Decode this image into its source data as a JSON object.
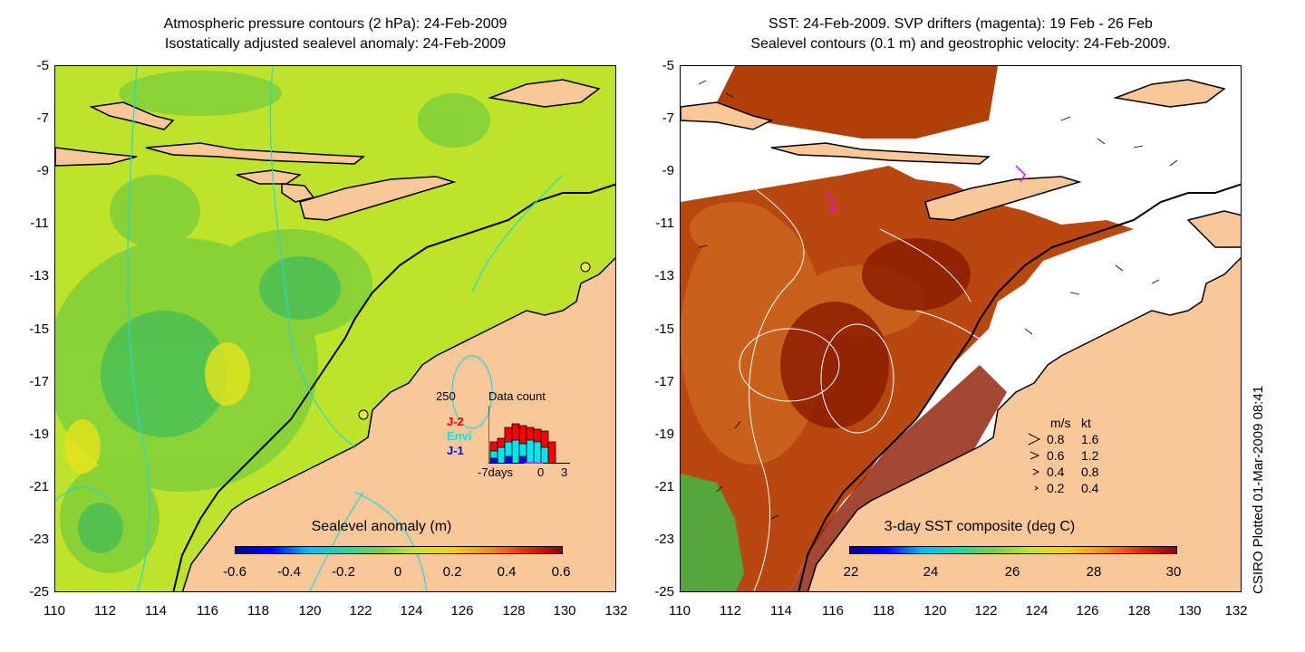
{
  "left_panel": {
    "title_line1": "Atmospheric pressure contours (2 hPa): 24-Feb-2009",
    "title_line2": "Isostatically adjusted sealevel anomaly: 24-Feb-2009",
    "colorbar_title": "Sealevel anomaly (m)",
    "colorbar_ticks": [
      "-0.6",
      "-0.4",
      "-0.2",
      "0",
      "0.2",
      "0.4",
      "0.6"
    ],
    "inset": {
      "count_label": "250",
      "title": "Data count",
      "legend": [
        {
          "name": "J-2",
          "color": "#ff0000"
        },
        {
          "name": "Envi",
          "color": "#00e5ee"
        },
        {
          "name": "J-1",
          "color": "#0000ff"
        }
      ],
      "xlabel_left": "-7days",
      "xlabel_mid": "0",
      "xlabel_right": "3"
    }
  },
  "right_panel": {
    "title_line1": "SST: 24-Feb-2009. SVP drifters (magenta): 19 Feb - 26 Feb",
    "title_line2": "Sealevel contours (0.1 m) and geostrophic velocity: 24-Feb-2009.",
    "colorbar_title": "3-day SST composite (deg C)",
    "colorbar_ticks": [
      "22",
      "24",
      "26",
      "28",
      "30"
    ],
    "velocity_legend": {
      "header_ms": "m/s",
      "header_kt": "kt",
      "rows": [
        {
          "ms": "0.8",
          "kt": "1.6"
        },
        {
          "ms": "0.6",
          "kt": "1.2"
        },
        {
          "ms": "0.4",
          "kt": "0.8"
        },
        {
          "ms": "0.2",
          "kt": "0.4"
        }
      ]
    }
  },
  "axes": {
    "y_ticks": [
      "-5",
      "-7",
      "-9",
      "-11",
      "-13",
      "-15",
      "-17",
      "-19",
      "-21",
      "-23",
      "-25"
    ],
    "x_ticks": [
      "110",
      "112",
      "114",
      "116",
      "118",
      "120",
      "122",
      "124",
      "126",
      "128",
      "130",
      "132"
    ]
  },
  "credit": "CSIRO Plotted 01-Mar-2009 08:41",
  "colors": {
    "land": "#f9c79a",
    "sea_anomaly": "#b8e82a",
    "sst_warm": "#c0400a"
  }
}
